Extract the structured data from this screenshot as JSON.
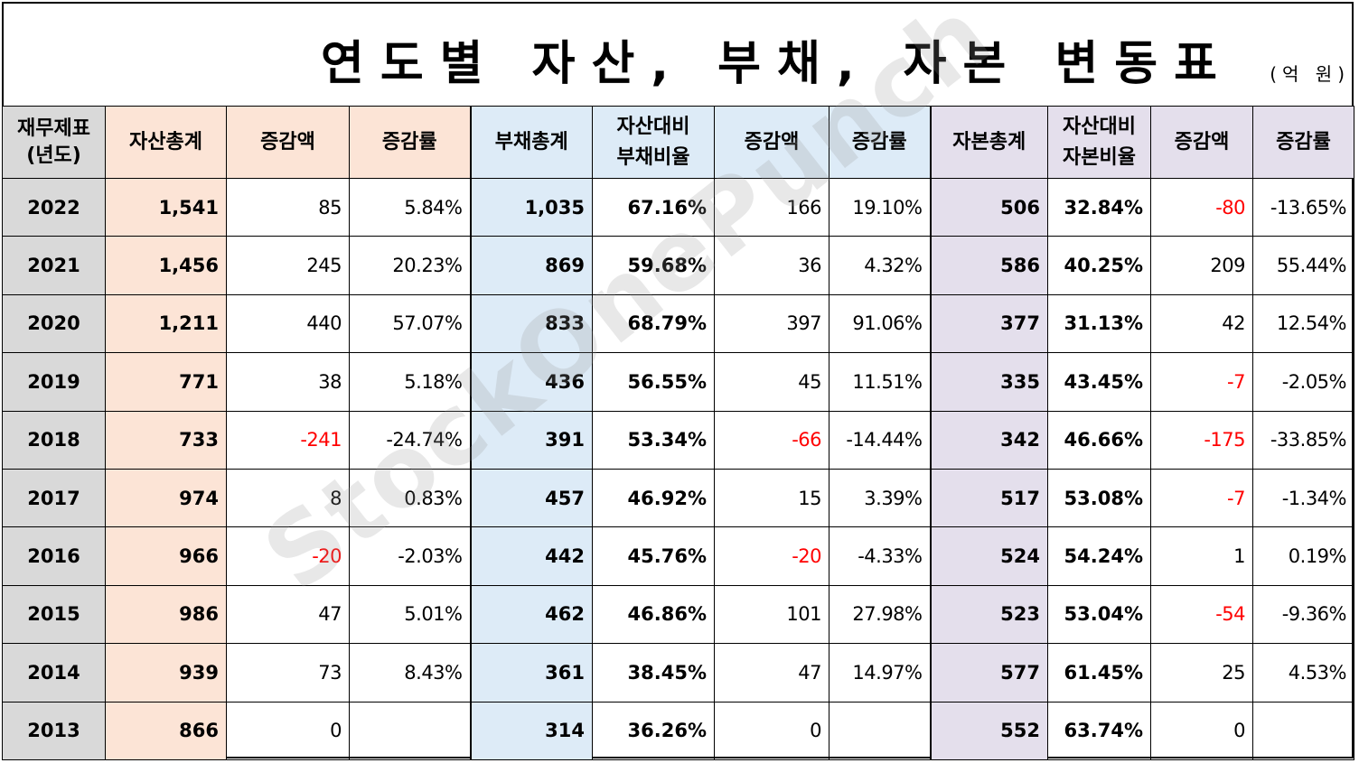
{
  "title": "연도별 자산, 부채, 자본 변동표",
  "unit": "(억 원)",
  "watermark": "StockOnePunch",
  "headers": {
    "year": "재무제표\n(년도)",
    "asset_total": "자산총계",
    "asset_change": "증감액",
    "asset_rate": "증감률",
    "debt_total": "부채총계",
    "debt_ratio": "자산대비\n부채비율",
    "debt_change": "증감액",
    "debt_rate": "증감률",
    "equity_total": "자본총계",
    "equity_ratio": "자산대비\n자본비율",
    "equity_change": "증감액",
    "equity_rate": "증감률"
  },
  "rows": [
    {
      "year": "2022",
      "asset": "1,541",
      "asset_change": "85",
      "asset_rate": "5.84%",
      "debt": "1,035",
      "debt_ratio": "67.16%",
      "debt_change": "166",
      "debt_rate": "19.10%",
      "equity": "506",
      "equity_ratio": "32.84%",
      "equity_change": "-80",
      "equity_rate": "-13.65%"
    },
    {
      "year": "2021",
      "asset": "1,456",
      "asset_change": "245",
      "asset_rate": "20.23%",
      "debt": "869",
      "debt_ratio": "59.68%",
      "debt_change": "36",
      "debt_rate": "4.32%",
      "equity": "586",
      "equity_ratio": "40.25%",
      "equity_change": "209",
      "equity_rate": "55.44%"
    },
    {
      "year": "2020",
      "asset": "1,211",
      "asset_change": "440",
      "asset_rate": "57.07%",
      "debt": "833",
      "debt_ratio": "68.79%",
      "debt_change": "397",
      "debt_rate": "91.06%",
      "equity": "377",
      "equity_ratio": "31.13%",
      "equity_change": "42",
      "equity_rate": "12.54%"
    },
    {
      "year": "2019",
      "asset": "771",
      "asset_change": "38",
      "asset_rate": "5.18%",
      "debt": "436",
      "debt_ratio": "56.55%",
      "debt_change": "45",
      "debt_rate": "11.51%",
      "equity": "335",
      "equity_ratio": "43.45%",
      "equity_change": "-7",
      "equity_rate": "-2.05%"
    },
    {
      "year": "2018",
      "asset": "733",
      "asset_change": "-241",
      "asset_rate": "-24.74%",
      "debt": "391",
      "debt_ratio": "53.34%",
      "debt_change": "-66",
      "debt_rate": "-14.44%",
      "equity": "342",
      "equity_ratio": "46.66%",
      "equity_change": "-175",
      "equity_rate": "-33.85%"
    },
    {
      "year": "2017",
      "asset": "974",
      "asset_change": "8",
      "asset_rate": "0.83%",
      "debt": "457",
      "debt_ratio": "46.92%",
      "debt_change": "15",
      "debt_rate": "3.39%",
      "equity": "517",
      "equity_ratio": "53.08%",
      "equity_change": "-7",
      "equity_rate": "-1.34%"
    },
    {
      "year": "2016",
      "asset": "966",
      "asset_change": "-20",
      "asset_rate": "-2.03%",
      "debt": "442",
      "debt_ratio": "45.76%",
      "debt_change": "-20",
      "debt_rate": "-4.33%",
      "equity": "524",
      "equity_ratio": "54.24%",
      "equity_change": "1",
      "equity_rate": "0.19%"
    },
    {
      "year": "2015",
      "asset": "986",
      "asset_change": "47",
      "asset_rate": "5.01%",
      "debt": "462",
      "debt_ratio": "46.86%",
      "debt_change": "101",
      "debt_rate": "27.98%",
      "equity": "523",
      "equity_ratio": "53.04%",
      "equity_change": "-54",
      "equity_rate": "-9.36%"
    },
    {
      "year": "2014",
      "asset": "939",
      "asset_change": "73",
      "asset_rate": "8.43%",
      "debt": "361",
      "debt_ratio": "38.45%",
      "debt_change": "47",
      "debt_rate": "14.97%",
      "equity": "577",
      "equity_ratio": "61.45%",
      "equity_change": "25",
      "equity_rate": "4.53%"
    },
    {
      "year": "2013",
      "asset": "866",
      "asset_change": "0",
      "asset_rate": "",
      "debt": "314",
      "debt_ratio": "36.26%",
      "debt_change": "0",
      "debt_rate": "",
      "equity": "552",
      "equity_ratio": "63.74%",
      "equity_change": "0",
      "equity_rate": ""
    }
  ],
  "colors": {
    "year_bg": "#d9d9d9",
    "asset_bg": "#fce4d6",
    "debt_bg": "#ddebf7",
    "equity_bg": "#e4dfec",
    "negative": "#ff0000"
  }
}
